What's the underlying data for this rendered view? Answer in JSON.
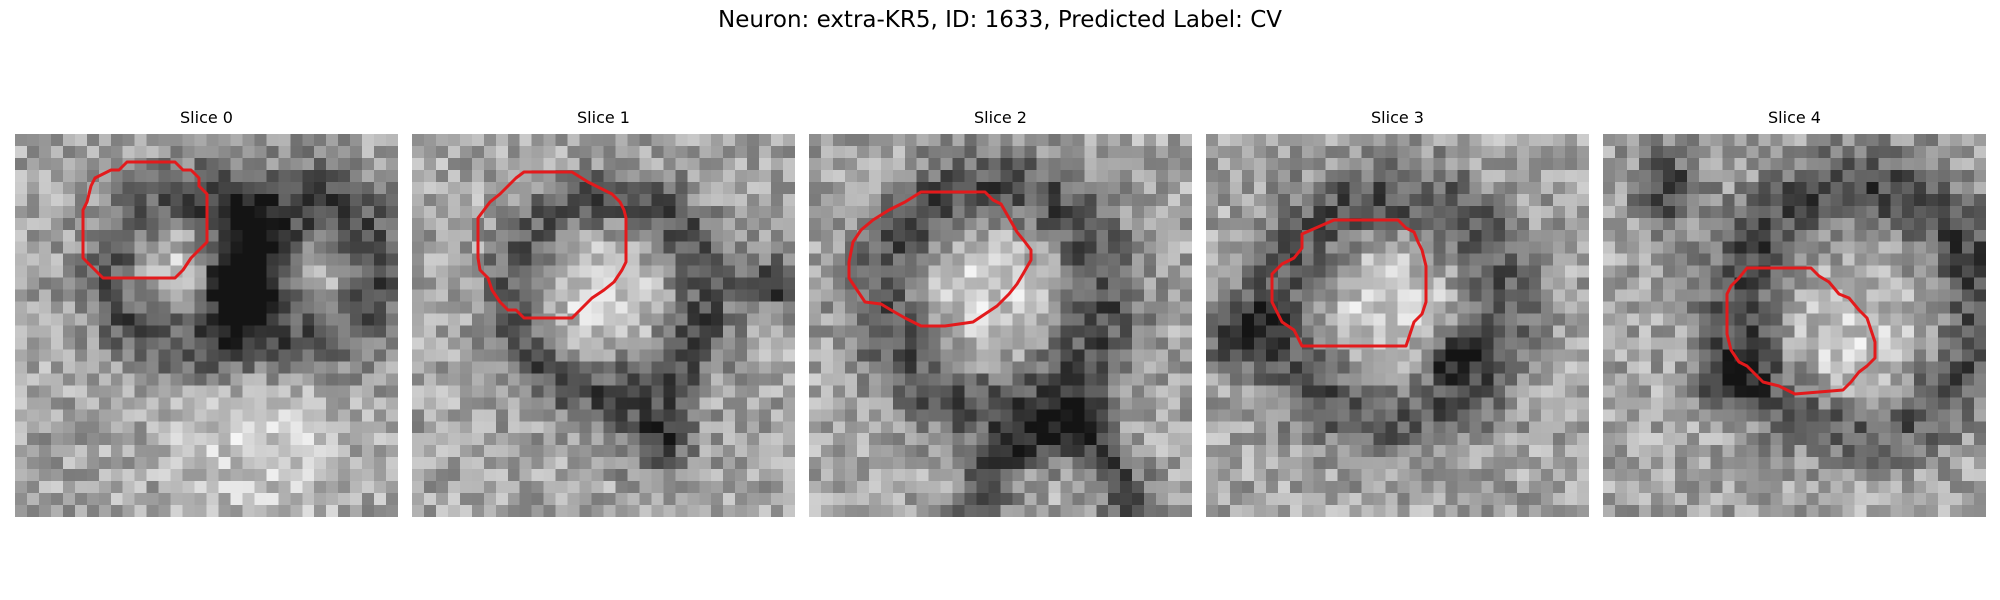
{
  "figure": {
    "title": "Neuron: extra-KR5, ID: 1633, Predicted Label: CV",
    "grid_size": 32,
    "contour_color": "#e31a1c",
    "slices": [
      {
        "label": "Slice 0",
        "seed": 11,
        "dark_rings": [
          [
            14,
            11,
            6.2,
            2.2
          ],
          [
            24,
            11,
            5.5,
            2.6
          ]
        ],
        "dark_spots": [
          [
            18,
            12,
            1.6
          ]
        ],
        "bright_spots": [
          [
            12,
            10,
            3.5
          ],
          [
            25,
            12,
            3.0
          ],
          [
            20,
            25,
            5
          ]
        ]
      },
      {
        "label": "Slice 1",
        "seed": 23,
        "dark_rings": [
          [
            16,
            13,
            8,
            2.0
          ]
        ],
        "dark_spots": [
          [
            30,
            12,
            1.5
          ],
          [
            20,
            25,
            2.0
          ]
        ],
        "bright_spots": [
          [
            14,
            12,
            5
          ]
        ]
      },
      {
        "label": "Slice 2",
        "seed": 37,
        "dark_rings": [
          [
            15,
            13,
            9,
            2.4
          ],
          [
            20,
            31,
            6,
            1.5
          ]
        ],
        "dark_spots": [
          [
            22,
            23,
            1.5
          ]
        ],
        "bright_spots": [
          [
            14,
            13,
            5
          ]
        ]
      },
      {
        "label": "Slice 3",
        "seed": 51,
        "dark_rings": [
          [
            15,
            14,
            9,
            2.6
          ]
        ],
        "dark_spots": [
          [
            2,
            16,
            2
          ],
          [
            20,
            18,
            1.5
          ]
        ],
        "bright_spots": [
          [
            15,
            14,
            6
          ]
        ]
      },
      {
        "label": "Slice 4",
        "seed": 67,
        "dark_rings": [
          [
            21,
            14,
            10,
            2.4
          ]
        ],
        "dark_spots": [
          [
            10,
            20,
            1.8
          ],
          [
            5,
            4,
            2
          ]
        ],
        "bright_spots": [
          [
            20,
            19,
            5
          ]
        ]
      }
    ]
  }
}
